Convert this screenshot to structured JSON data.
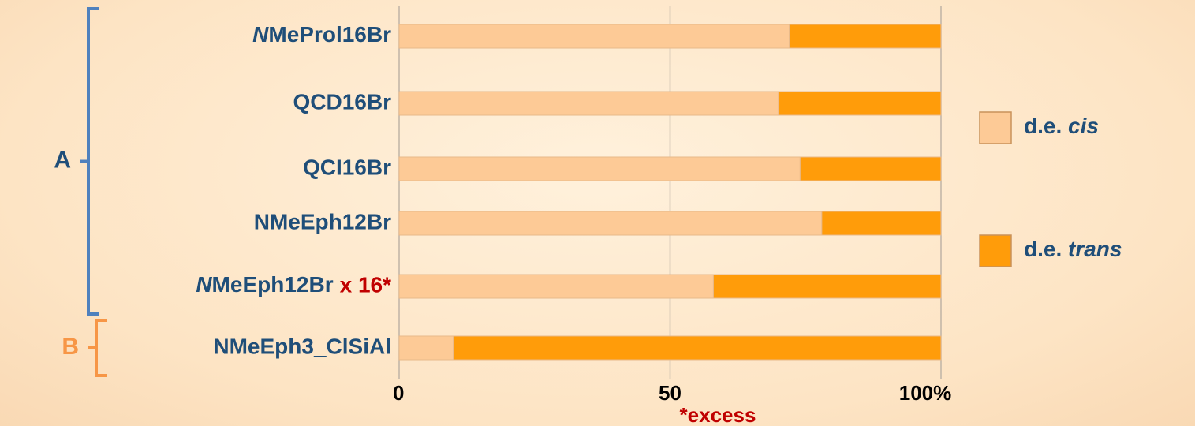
{
  "chart_data": {
    "type": "stacked_bar_horizontal",
    "categories": [
      "NMeProl16Br",
      "QCD16Br",
      "QCI16Br",
      "NMeEph12Br",
      "NMeEph12Br",
      "NMeEph3_ClSiAl"
    ],
    "category_italic_first": [
      true,
      false,
      false,
      false,
      true,
      false
    ],
    "series": [
      {
        "name": "d.e. cis",
        "color": "#fdca96",
        "values": [
          72,
          70,
          74,
          78,
          58,
          10
        ]
      },
      {
        "name": "d.e. trans",
        "color": "#ff9c0a",
        "values": [
          28,
          30,
          26,
          22,
          42,
          90
        ]
      }
    ],
    "xlim": [
      0,
      100
    ],
    "xticks": [
      0,
      50,
      {
        "value": 100,
        "label": "100%"
      }
    ],
    "grid": true,
    "legend": "right",
    "annotations": [
      {
        "text": "x 16*",
        "category": 4,
        "color": "#c00000"
      },
      {
        "text": "*excess",
        "color": "#c00000"
      }
    ],
    "groups": [
      {
        "label": "A",
        "from": 0,
        "to": 4,
        "color": "#4f81bd"
      },
      {
        "label": "B",
        "from": 5,
        "to": 5,
        "color": "#f79646"
      }
    ]
  }
}
